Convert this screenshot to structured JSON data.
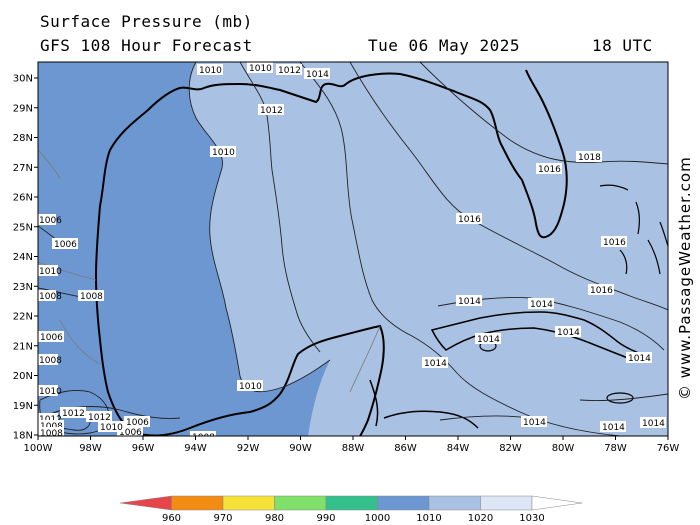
{
  "title": {
    "line1": "Surface Pressure (mb)",
    "line2": "GFS 108 Hour Forecast",
    "date": "Tue 06 May 2025",
    "time": "18 UTC"
  },
  "colors": {
    "ocean": "#a9c1e2",
    "land": "#a9c1e2",
    "low_pressure_band": "#6d97d1",
    "contour": "#222222",
    "coast": "#000000"
  },
  "axes": {
    "lat_labels": [
      "30N",
      "29N",
      "28N",
      "27N",
      "26N",
      "25N",
      "24N",
      "23N",
      "22N",
      "21N",
      "20N",
      "19N",
      "18N"
    ],
    "lon_labels": [
      "100W",
      "98W",
      "96W",
      "94W",
      "92W",
      "90W",
      "88W",
      "86W",
      "84W",
      "82W",
      "80W",
      "78W",
      "76W"
    ]
  },
  "isobars": [
    {
      "value": "1010",
      "labels": [
        "1010",
        "1010",
        "1010",
        "1010",
        "1010"
      ]
    },
    {
      "value": "1012",
      "labels": [
        "1012",
        "1012",
        "1012",
        "1012"
      ]
    },
    {
      "value": "1014",
      "labels": [
        "1014",
        "1014",
        "1014",
        "1014",
        "1014",
        "1014",
        "1014",
        "1014"
      ]
    },
    {
      "value": "1016",
      "labels": [
        "1016",
        "1016",
        "1016",
        "1016",
        "1016"
      ]
    },
    {
      "value": "1018",
      "labels": [
        "1018"
      ]
    },
    {
      "value": "1008",
      "labels": [
        "1008",
        "1008",
        "1008",
        "1008",
        "1008"
      ]
    },
    {
      "value": "1006",
      "labels": [
        "1006",
        "1006",
        "1006",
        "1006",
        "1006"
      ]
    }
  ],
  "contour_labels": [
    "1010",
    "1010",
    "1010",
    "1010",
    "1008",
    "1010",
    "1006",
    "1012",
    "1012",
    "1012",
    "1014",
    "1016",
    "1016",
    "1016",
    "1018",
    "1014",
    "1014",
    "1014",
    "1014",
    "1014",
    "1014",
    "1014",
    "1014",
    "1014",
    "1006",
    "1006",
    "1006",
    "1008",
    "1008",
    "1008",
    "1006",
    "1006",
    "1006",
    "1008",
    "1012",
    "1012",
    "1010",
    "1008",
    "1008",
    "1010",
    "1010",
    "1012"
  ],
  "legend": {
    "ticks": [
      "960",
      "970",
      "980",
      "990",
      "1000",
      "1010",
      "1020",
      "1030"
    ],
    "colors": [
      "#e8454a",
      "#f28c13",
      "#f7e23a",
      "#7fe06a",
      "#34c08c",
      "#6d97d1",
      "#a9c1e2",
      "#dce6f5"
    ]
  },
  "credit": "© www.PassageWeather.com"
}
